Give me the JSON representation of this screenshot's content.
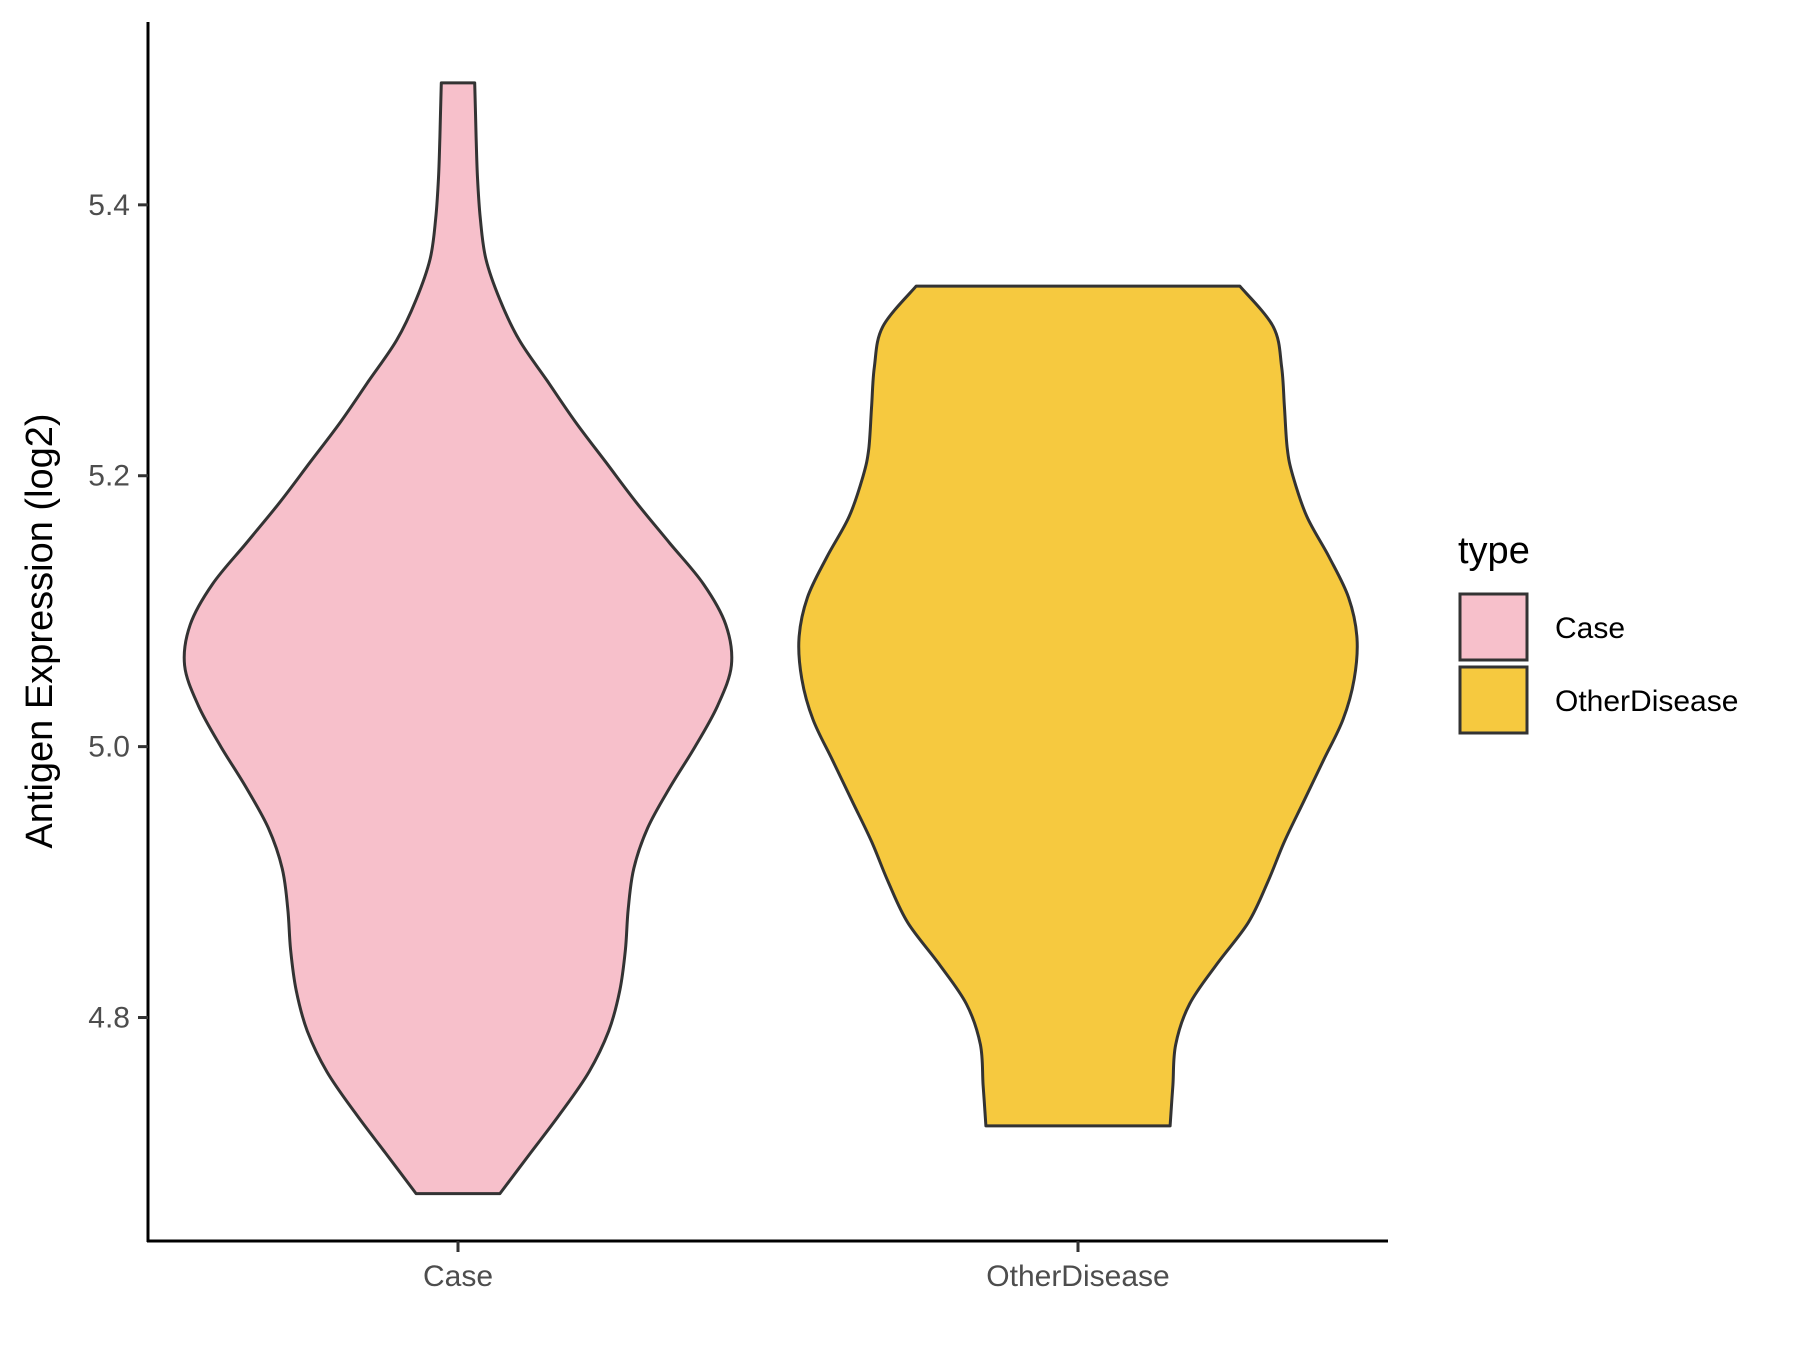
{
  "chart_data": {
    "type": "violin",
    "categories": [
      "Case",
      "OtherDisease"
    ],
    "ylabel": "Antigen Expression (log2)",
    "xlabel": "",
    "ylim": [
      4.635,
      5.535
    ],
    "y_ticks": [
      "4.8",
      "5.0",
      "5.2",
      "5.4"
    ],
    "legend": {
      "title": "type",
      "placement": "right",
      "entries": [
        "Case",
        "OtherDisease"
      ]
    },
    "series": [
      {
        "category": "Case",
        "color": "#F7C0CB",
        "min": 4.67,
        "max": 5.49,
        "density_profile": [
          [
            4.67,
            0.15
          ],
          [
            4.7,
            0.26
          ],
          [
            4.73,
            0.37
          ],
          [
            4.76,
            0.47
          ],
          [
            4.79,
            0.54
          ],
          [
            4.82,
            0.58
          ],
          [
            4.85,
            0.6
          ],
          [
            4.88,
            0.61
          ],
          [
            4.91,
            0.63
          ],
          [
            4.94,
            0.68
          ],
          [
            4.97,
            0.76
          ],
          [
            5.0,
            0.85
          ],
          [
            5.03,
            0.93
          ],
          [
            5.06,
            0.98
          ],
          [
            5.09,
            0.96
          ],
          [
            5.12,
            0.88
          ],
          [
            5.15,
            0.76
          ],
          [
            5.18,
            0.64
          ],
          [
            5.21,
            0.53
          ],
          [
            5.24,
            0.42
          ],
          [
            5.27,
            0.32
          ],
          [
            5.3,
            0.22
          ],
          [
            5.33,
            0.15
          ],
          [
            5.36,
            0.1
          ],
          [
            5.39,
            0.08
          ],
          [
            5.42,
            0.07
          ],
          [
            5.45,
            0.065
          ],
          [
            5.49,
            0.06
          ]
        ]
      },
      {
        "category": "OtherDisease",
        "color": "#F6C93F",
        "min": 4.72,
        "max": 5.34,
        "density_profile": [
          [
            4.72,
            0.33
          ],
          [
            4.75,
            0.34
          ],
          [
            4.78,
            0.35
          ],
          [
            4.81,
            0.4
          ],
          [
            4.84,
            0.5
          ],
          [
            4.87,
            0.61
          ],
          [
            4.9,
            0.68
          ],
          [
            4.93,
            0.74
          ],
          [
            4.96,
            0.81
          ],
          [
            4.99,
            0.88
          ],
          [
            5.02,
            0.95
          ],
          [
            5.05,
            0.99
          ],
          [
            5.08,
            1.0
          ],
          [
            5.11,
            0.97
          ],
          [
            5.14,
            0.9
          ],
          [
            5.17,
            0.82
          ],
          [
            5.2,
            0.77
          ],
          [
            5.22,
            0.75
          ],
          [
            5.25,
            0.74
          ],
          [
            5.28,
            0.73
          ],
          [
            5.31,
            0.7
          ],
          [
            5.34,
            0.58
          ]
        ]
      }
    ]
  }
}
